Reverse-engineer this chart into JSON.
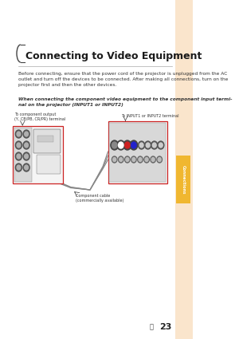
{
  "bg_color": "#ffffff",
  "right_strip_color": "#fae5cc",
  "tab_color": "#f0b730",
  "tab_text": "Connections",
  "title": "Connecting to Video Equipment",
  "body_text1": "Before connecting, ensure that the power cord of the projector is unplugged from the AC\noutlet and turn off the devices to be connected. After making all connections, turn on the\nprojector first and then the other devices.",
  "body_text2": "When connecting the component video equipment to the component input termi-\nnal on the projector (INPUT1 or INPUT2)",
  "diagram_label_left": "To component output\n(Y, CB/PB, CR/PR) terminal",
  "diagram_label_right": "To INPUT1 or INPUT2 terminal",
  "diagram_label_cable": "Component cable\n(commercially available)",
  "page_num": "23"
}
